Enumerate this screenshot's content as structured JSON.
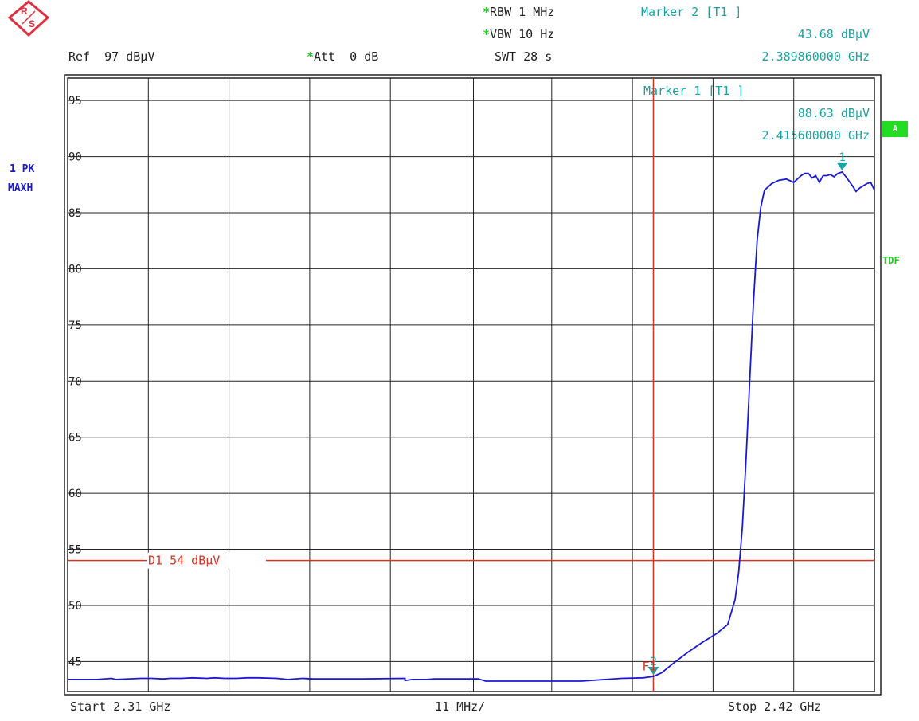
{
  "header": {
    "rbw": "RBW 1 MHz",
    "vbw": "VBW 10 Hz",
    "swt": "SWT 28 s",
    "ref": "Ref  97 dBµV",
    "att": "Att  0 dB",
    "star": "*"
  },
  "marker2": {
    "title": "Marker 2 [T1 ]",
    "level": "43.68 dBµV",
    "freq": "2.389860000 GHz"
  },
  "marker1": {
    "title": "Marker 1 [T1 ]",
    "level": "88.63 dBµV",
    "freq": "2.415600000 GHz"
  },
  "side": {
    "trace_line1": "1 PK",
    "trace_line2": "MAXH",
    "badge_a": "A",
    "tdf": "TDF"
  },
  "footer": {
    "start": "Start 2.31 GHz",
    "span": "11 MHz/",
    "stop": "Stop 2.42 GHz"
  },
  "colors": {
    "trace": "#1a1ad6",
    "limit": "#e03020",
    "marker": "#1aa3a3",
    "status": "#22cc22",
    "logo": "#e03040"
  },
  "logo_icon": "rohde-schwarz-logo",
  "chart_data": {
    "type": "line",
    "xlim": [
      2.31,
      2.42
    ],
    "ylim": [
      42.33,
      97
    ],
    "y_ticks": [
      45,
      50,
      55,
      60,
      65,
      70,
      75,
      80,
      85,
      90,
      95
    ],
    "grid": true,
    "limit_line": {
      "label": "D1  54 dBµV",
      "value": 54
    },
    "frequency_line": {
      "label": "F1",
      "value": 2.38986
    },
    "markers": [
      {
        "label": "1",
        "x": 2.4156,
        "y": 88.63
      },
      {
        "label": "2",
        "x": 2.38986,
        "y": 43.68
      }
    ],
    "series": [
      {
        "x": [
          2.31,
          2.314,
          2.316,
          2.3165,
          2.32,
          2.3215,
          2.323,
          2.324,
          2.3255,
          2.327,
          2.329,
          2.33,
          2.3315,
          2.333,
          2.3345,
          2.336,
          2.3385,
          2.34,
          2.342,
          2.3435,
          2.3455,
          2.35,
          2.356,
          2.356,
          2.357,
          2.359,
          2.36,
          2.366,
          2.367,
          2.38,
          2.3855,
          2.3885,
          2.3899,
          2.391,
          2.3925,
          2.3945,
          2.3965,
          2.3985,
          2.4,
          2.401,
          2.4015,
          2.402,
          2.4025,
          2.403,
          2.4035,
          2.404,
          2.4045,
          2.405,
          2.406,
          2.407,
          2.408,
          2.409,
          2.41,
          2.4105,
          2.411,
          2.4115,
          2.412,
          2.4125,
          2.413,
          2.4135,
          2.414,
          2.4145,
          2.415,
          2.4156,
          2.416,
          2.417,
          2.4175,
          2.418,
          2.419,
          2.4195,
          2.42
        ],
        "y": [
          43.4,
          43.4,
          43.5,
          43.4,
          43.5,
          43.5,
          43.45,
          43.5,
          43.5,
          43.55,
          43.5,
          43.55,
          43.5,
          43.5,
          43.55,
          43.55,
          43.5,
          43.4,
          43.5,
          43.45,
          43.45,
          43.45,
          43.5,
          43.3,
          43.4,
          43.4,
          43.45,
          43.45,
          43.25,
          43.25,
          43.5,
          43.55,
          43.68,
          44.0,
          44.8,
          45.8,
          46.7,
          47.5,
          48.3,
          50.5,
          53.0,
          57.0,
          63.0,
          70.0,
          77.0,
          82.5,
          85.5,
          87.0,
          87.6,
          87.9,
          88.0,
          87.7,
          88.3,
          88.5,
          88.5,
          88.1,
          88.3,
          87.7,
          88.3,
          88.3,
          88.4,
          88.2,
          88.5,
          88.63,
          88.3,
          87.4,
          86.9,
          87.2,
          87.6,
          87.7,
          87.0
        ]
      }
    ]
  }
}
